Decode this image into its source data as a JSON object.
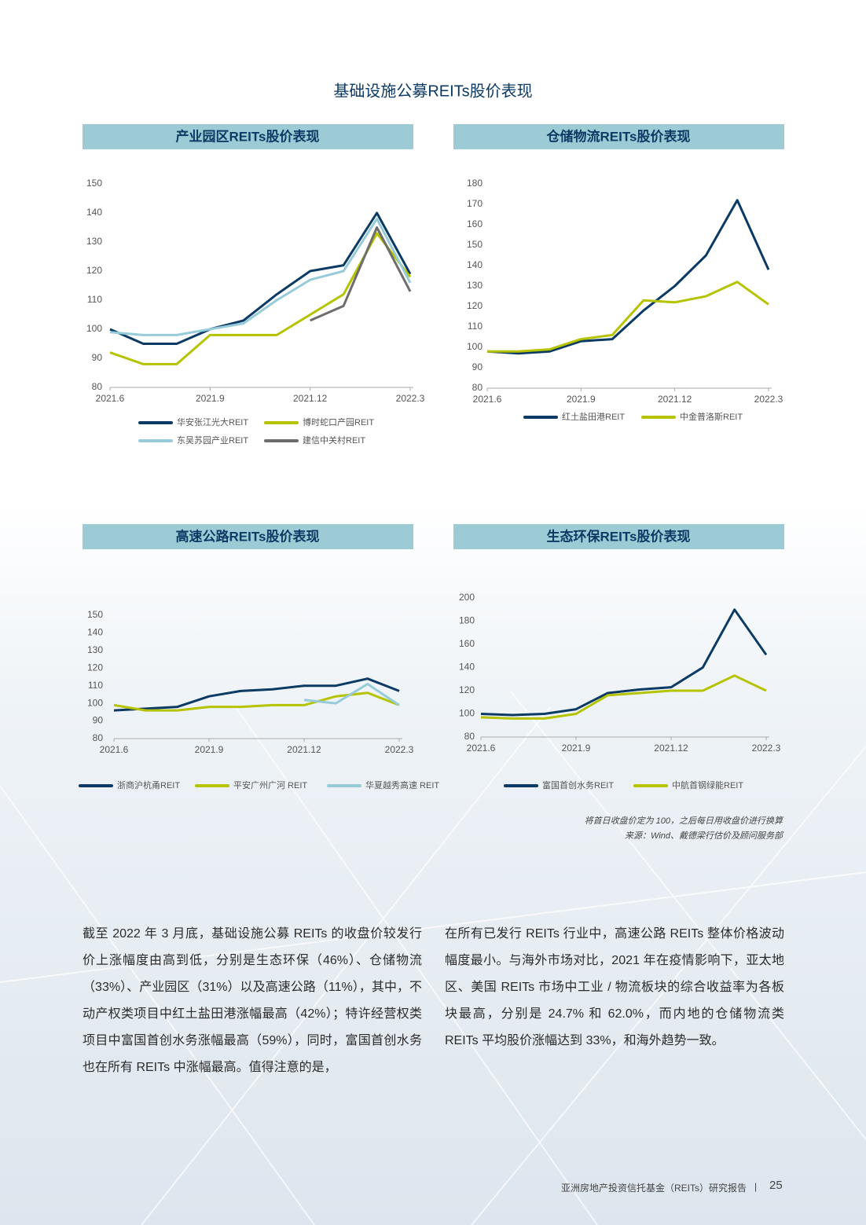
{
  "header": {
    "title": "基础设施公募REITs股价表现"
  },
  "chart_data": [
    {
      "type": "line",
      "title": "产业园区REITs股价表现",
      "categories": [
        "2021.6",
        null,
        null,
        "2021.9",
        null,
        null,
        "2021.12",
        null,
        null,
        "2022.3"
      ],
      "ylim": [
        80,
        150
      ],
      "yticks": [
        80,
        90,
        100,
        110,
        120,
        130,
        140,
        150
      ],
      "series": [
        {
          "name": "华安张江光大REIT",
          "color": "#0b3a64",
          "values": [
            100,
            95,
            95,
            100,
            103,
            112,
            120,
            122,
            140,
            119
          ]
        },
        {
          "name": "博时蛇口产园REIT",
          "color": "#b5c300",
          "values": [
            92,
            88,
            88,
            98,
            98,
            98,
            105,
            112,
            133,
            118
          ]
        },
        {
          "name": "东吴苏园产业REIT",
          "color": "#97cbd9",
          "values": [
            99,
            98,
            98,
            100,
            102,
            110,
            117,
            120,
            138,
            116
          ]
        },
        {
          "name": "建信中关村REIT",
          "color": "#6d6d6d",
          "values": [
            null,
            null,
            null,
            null,
            null,
            null,
            103,
            108,
            135,
            113
          ]
        }
      ]
    },
    {
      "type": "line",
      "title": "仓储物流REITs股价表现",
      "categories": [
        "2021.6",
        null,
        null,
        "2021.9",
        null,
        null,
        "2021.12",
        null,
        null,
        "2022.3"
      ],
      "ylim": [
        80,
        180
      ],
      "yticks": [
        80,
        90,
        100,
        110,
        120,
        130,
        140,
        150,
        160,
        170,
        180
      ],
      "series": [
        {
          "name": "红土盐田港REIT",
          "color": "#0b3a64",
          "values": [
            98,
            97,
            98,
            103,
            104,
            118,
            130,
            145,
            172,
            138
          ]
        },
        {
          "name": "中金普洛斯REIT",
          "color": "#b5c300",
          "values": [
            98,
            98,
            99,
            104,
            106,
            123,
            122,
            125,
            132,
            121
          ]
        }
      ]
    },
    {
      "type": "line",
      "title": "高速公路REITs股价表现",
      "categories": [
        "2021.6",
        null,
        null,
        "2021.9",
        null,
        null,
        "2021.12",
        null,
        null,
        "2022.3"
      ],
      "ylim": [
        80,
        150
      ],
      "yticks": [
        80,
        90,
        100,
        110,
        120,
        130,
        140,
        150
      ],
      "series": [
        {
          "name": "浙商沪杭甬REIT",
          "color": "#0b3a64",
          "values": [
            96,
            97,
            98,
            104,
            107,
            108,
            110,
            110,
            114,
            107
          ]
        },
        {
          "name": "平安广州广河 REIT",
          "color": "#b5c300",
          "values": [
            99,
            96,
            96,
            98,
            98,
            99,
            99,
            104,
            106,
            99
          ]
        },
        {
          "name": "华夏越秀高速 REIT",
          "color": "#97cbd9",
          "values": [
            null,
            null,
            null,
            null,
            null,
            null,
            102,
            100,
            111,
            99
          ]
        }
      ]
    },
    {
      "type": "line",
      "title": "生态环保REITs股价表现",
      "categories": [
        "2021.6",
        null,
        null,
        "2021.9",
        null,
        null,
        "2021.12",
        null,
        null,
        "2022.3"
      ],
      "ylim": [
        80,
        200
      ],
      "yticks": [
        80,
        100,
        120,
        140,
        160,
        180,
        200
      ],
      "series": [
        {
          "name": "富国首创水务REIT",
          "color": "#0b3a64",
          "values": [
            100,
            99,
            100,
            104,
            118,
            121,
            123,
            140,
            190,
            151
          ]
        },
        {
          "name": "中航首钢绿能REIT",
          "color": "#b5c300",
          "values": [
            97,
            96,
            96,
            100,
            116,
            118,
            120,
            120,
            133,
            120
          ]
        }
      ]
    }
  ],
  "notes": {
    "method": "将首日收盘价定为 100，之后每日用收盘价进行换算",
    "source": "来源：Wind、戴德梁行估价及顾问服务部"
  },
  "body": {
    "left": "截至 2022 年 3 月底，基础设施公募 REITs 的收盘价较发行价上涨幅度由高到低，分别是生态环保（46%）、仓储物流（33%）、产业园区（31%）以及高速公路（11%），其中，不动产权类项目中红土盐田港涨幅最高（42%）；特许经营权类项目中富国首创水务涨幅最高（59%），同时，富国首创水务也在所有 REITs 中涨幅最高。值得注意的是，",
    "right": "在所有已发行 REITs 行业中，高速公路 REITs 整体价格波动幅度最小。与海外市场对比，2021 年在疫情影响下，亚太地区、美国 REITs 市场中工业 / 物流板块的综合收益率为各板块最高，分别是 24.7% 和 62.0%，而内地的仓储物流类 REITs 平均股价涨幅达到 33%，和海外趋势一致。"
  },
  "footer": {
    "report": "亚洲房地产投资信托基金（REITs）研究报告",
    "separator": "|",
    "page": "25"
  }
}
